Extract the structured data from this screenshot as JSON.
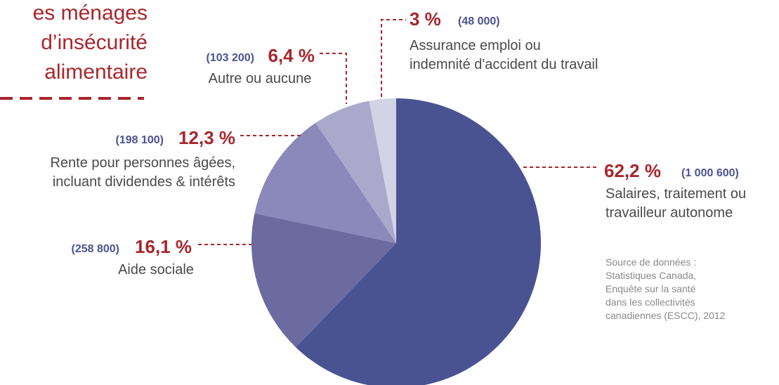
{
  "chart_data": {
    "type": "pie",
    "title_lines": [
      "es ménages",
      "d’insécurité",
      "alimentaire"
    ],
    "categories": [
      [
        "Salaires, traitement ou",
        "travailleur autonome"
      ],
      [
        "Aide sociale"
      ],
      [
        "Rente pour personnes âgées,",
        "incluant dividendes & intérêts"
      ],
      [
        "Autre ou aucune"
      ],
      [
        "Assurance emploi ou",
        "indemnité d'accident du travail"
      ]
    ],
    "values": [
      62.2,
      16.1,
      12.3,
      6.4,
      3
    ],
    "value_labels": [
      "62,2 %",
      "16,1 %",
      "12,3 %",
      "6,4 %",
      "3 %"
    ],
    "count_labels": [
      "(1 000 600)",
      "(258 800)",
      "(198 100)",
      "(103 200)",
      "(48 000)"
    ],
    "colors": [
      "#4a5392",
      "#6b6ba2",
      "#8a89b9",
      "#aaa8cb",
      "#d3d3e6"
    ],
    "source": [
      "Source de données :",
      "Statistiques Canada,",
      "Enquête sur la santé",
      "dans les collectivités",
      "canadiennes (ESCC), 2012"
    ]
  }
}
